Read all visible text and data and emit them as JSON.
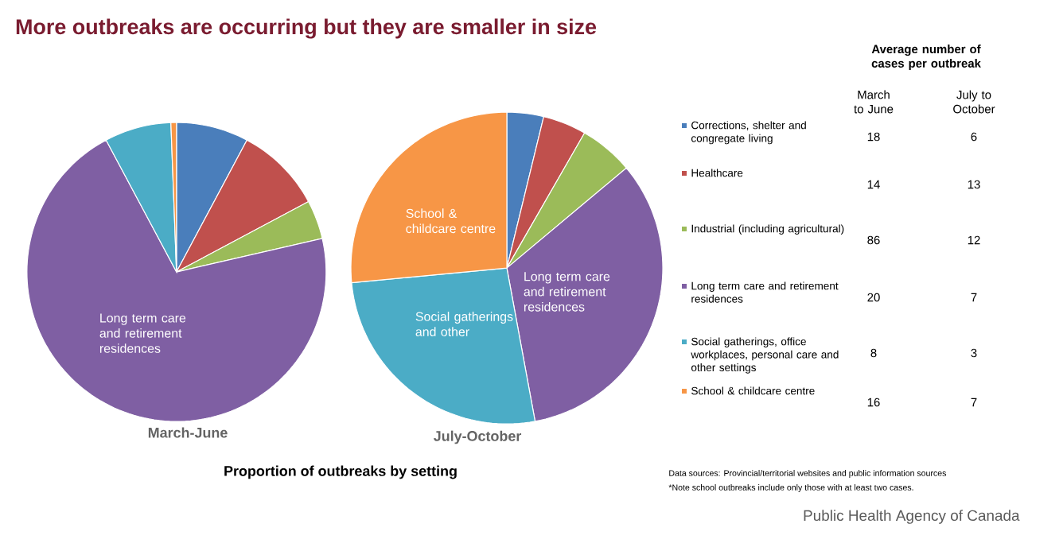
{
  "chart_data": [
    {
      "type": "pie",
      "title": "More outbreaks are occurring but they are smaller in size",
      "xlabel": "March-June",
      "annotations": [
        "Proportion of outbreaks by setting"
      ],
      "categories": [
        null,
        null,
        null,
        "Long term care and retirement residences",
        null,
        null
      ],
      "values": [
        7.8,
        9.4,
        4.2,
        70.8,
        7.2,
        0.6
      ],
      "colors": [
        "#4a7ebb",
        "#c0504d",
        "#9bbb59",
        "#7f5fa3",
        "#4bacc6",
        "#f79646"
      ]
    },
    {
      "type": "pie",
      "xlabel": "July-October",
      "categories": [
        null,
        null,
        null,
        "Long term care and retirement residences",
        "Social gatherings and other",
        "School & childcare centre"
      ],
      "values": [
        3.8,
        4.5,
        5.6,
        33.2,
        26.4,
        26.5
      ],
      "colors": [
        "#4a7ebb",
        "#c0504d",
        "#9bbb59",
        "#7f5fa3",
        "#4bacc6",
        "#f79646"
      ]
    },
    {
      "type": "other",
      "title": "Average number of cases per outbreak",
      "data_labels": true,
      "categories": [
        "Corrections, shelter and congregate living",
        "Healthcare",
        "Industrial (including agricultural)",
        "Long term care and retirement residences",
        "Social gatherings, office workplaces, personal care and other settings",
        "School & childcare centre"
      ],
      "colors": [
        "#4a7ebb",
        "#c0504d",
        "#9bbb59",
        "#7f5fa3",
        "#4bacc6",
        "#f79646"
      ],
      "series": [
        {
          "name": "March to June",
          "values": [
            18,
            14,
            86,
            20,
            8,
            16
          ]
        },
        {
          "name": "July to October",
          "values": [
            6,
            13,
            12,
            7,
            3,
            7
          ]
        }
      ],
      "annotations": [
        "Data sources: Provincial/territorial websites and public information sources",
        "*Note school outbreaks include only those with at least two cases.",
        "Public Health Agency of Canada"
      ]
    }
  ]
}
